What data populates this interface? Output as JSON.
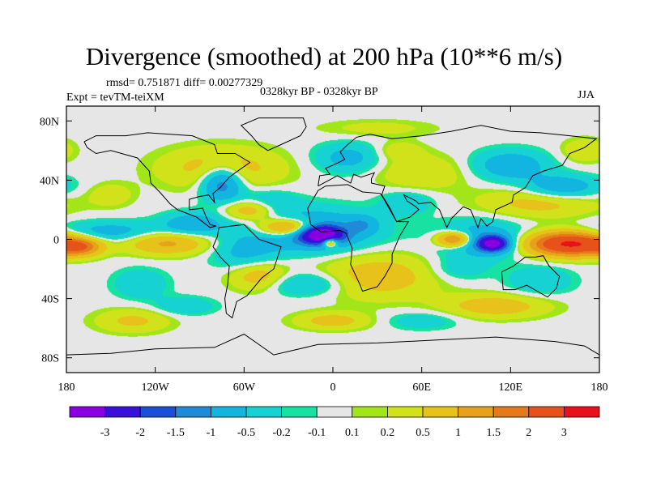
{
  "chart_data": {
    "type": "heatmap",
    "title": "Divergence (smoothed) at 200 hPa (10**6 m/s)",
    "stats": "rmsd= 0.751871 diff= 0.00277329",
    "expt": "Expt = tevTM-teiXM",
    "period": "0328kyr BP - 0328kyr BP",
    "season": "JJA",
    "x_range": [
      -180,
      180
    ],
    "y_range": [
      -90,
      90
    ],
    "x_ticks": [
      {
        "value": -180,
        "label": "180"
      },
      {
        "value": -120,
        "label": "120W"
      },
      {
        "value": -60,
        "label": "60W"
      },
      {
        "value": 0,
        "label": "0"
      },
      {
        "value": 60,
        "label": "60E"
      },
      {
        "value": 120,
        "label": "120E"
      },
      {
        "value": 180,
        "label": "180"
      }
    ],
    "y_ticks": [
      {
        "value": 80,
        "label": "80N"
      },
      {
        "value": 40,
        "label": "40N"
      },
      {
        "value": 0,
        "label": "0"
      },
      {
        "value": -40,
        "label": "40S"
      },
      {
        "value": -80,
        "label": "80S"
      }
    ],
    "colorbar": {
      "colors": [
        "#8a00e0",
        "#3a10d8",
        "#1a50d8",
        "#1e8ad8",
        "#12b4e0",
        "#16d2d2",
        "#18e2a2",
        "#e6e6e6",
        "#a2e61a",
        "#d2e21a",
        "#e6c21a",
        "#e6a21a",
        "#e67a1a",
        "#e6521a",
        "#e8101a"
      ],
      "labels": [
        "-3",
        "-2",
        "-1.5",
        "-1",
        "-0.5",
        "-0.2",
        "-0.1",
        "0.1",
        "0.2",
        "0.5",
        "1",
        "1.5",
        "2",
        "3"
      ]
    },
    "field": {
      "background": 0,
      "features": [
        {
          "lon": -8,
          "lat": 3,
          "rx": 14,
          "ry": 6,
          "value": -3.5
        },
        {
          "lon": 108,
          "lat": -3,
          "rx": 10,
          "ry": 5,
          "value": -3.0
        },
        {
          "lon": -15,
          "lat": 6,
          "rx": 42,
          "ry": 14,
          "value": -1.2
        },
        {
          "lon": 100,
          "lat": 0,
          "rx": 28,
          "ry": 12,
          "value": -1.0
        },
        {
          "lon": -75,
          "lat": 38,
          "rx": 14,
          "ry": 12,
          "value": -1.5
        },
        {
          "lon": -150,
          "lat": 5,
          "rx": 40,
          "ry": 7,
          "value": -0.8
        },
        {
          "lon": -95,
          "lat": 10,
          "rx": 20,
          "ry": 8,
          "value": -0.9
        },
        {
          "lon": -60,
          "lat": -10,
          "rx": 22,
          "ry": 12,
          "value": -0.6
        },
        {
          "lon": -20,
          "lat": -30,
          "rx": 30,
          "ry": 8,
          "value": -0.7
        },
        {
          "lon": 10,
          "lat": 55,
          "rx": 22,
          "ry": 10,
          "value": -0.7
        },
        {
          "lon": 120,
          "lat": 50,
          "rx": 25,
          "ry": 10,
          "value": -0.9
        },
        {
          "lon": 155,
          "lat": 35,
          "rx": 25,
          "ry": 8,
          "value": -1.0
        },
        {
          "lon": -45,
          "lat": 25,
          "rx": 20,
          "ry": 8,
          "value": -0.6
        },
        {
          "lon": 50,
          "lat": 25,
          "rx": 18,
          "ry": 8,
          "value": -0.5
        },
        {
          "lon": 85,
          "lat": -20,
          "rx": 20,
          "ry": 8,
          "value": -0.4
        },
        {
          "lon": 140,
          "lat": -28,
          "rx": 22,
          "ry": 10,
          "value": -0.5
        },
        {
          "lon": -130,
          "lat": -30,
          "rx": 18,
          "ry": 10,
          "value": -0.5
        },
        {
          "lon": -100,
          "lat": -45,
          "rx": 20,
          "ry": 6,
          "value": -0.5
        },
        {
          "lon": 60,
          "lat": -55,
          "rx": 25,
          "ry": 6,
          "value": -0.4
        },
        {
          "lon": 20,
          "lat": 10,
          "rx": 10,
          "ry": 6,
          "value": -0.6
        },
        {
          "lon": 160,
          "lat": -3,
          "rx": 28,
          "ry": 8,
          "value": 3.2
        },
        {
          "lon": 82,
          "lat": 0,
          "rx": 12,
          "ry": 5,
          "value": 2.0
        },
        {
          "lon": -30,
          "lat": 8,
          "rx": 20,
          "ry": 6,
          "value": 2.0
        },
        {
          "lon": -2,
          "lat": -2,
          "rx": 5,
          "ry": 3,
          "value": 2.5
        },
        {
          "lon": -112,
          "lat": -2,
          "rx": 28,
          "ry": 8,
          "value": 1.2
        },
        {
          "lon": -170,
          "lat": -5,
          "rx": 14,
          "ry": 6,
          "value": 1.5
        },
        {
          "lon": -75,
          "lat": 48,
          "rx": 40,
          "ry": 14,
          "value": 0.8
        },
        {
          "lon": -55,
          "lat": 20,
          "rx": 18,
          "ry": 7,
          "value": 1.1
        },
        {
          "lon": 30,
          "lat": -25,
          "rx": 40,
          "ry": 15,
          "value": 0.8
        },
        {
          "lon": -50,
          "lat": -25,
          "rx": 20,
          "ry": 10,
          "value": 0.9
        },
        {
          "lon": -135,
          "lat": -55,
          "rx": 25,
          "ry": 8,
          "value": 0.6
        },
        {
          "lon": 140,
          "lat": 25,
          "rx": 40,
          "ry": 10,
          "value": 0.7
        },
        {
          "lon": 60,
          "lat": 45,
          "rx": 30,
          "ry": 12,
          "value": 0.5
        },
        {
          "lon": 170,
          "lat": 60,
          "rx": 15,
          "ry": 8,
          "value": 0.5
        },
        {
          "lon": 110,
          "lat": -45,
          "rx": 35,
          "ry": 8,
          "value": 0.8
        },
        {
          "lon": 0,
          "lat": -55,
          "rx": 25,
          "ry": 6,
          "value": 0.7
        },
        {
          "lon": -150,
          "lat": 30,
          "rx": 15,
          "ry": 8,
          "value": 0.4
        },
        {
          "lon": 45,
          "lat": 60,
          "rx": 15,
          "ry": 6,
          "value": 0.4
        },
        {
          "lon": 30,
          "lat": 75,
          "rx": 40,
          "ry": 6,
          "value": 0.3
        }
      ]
    }
  }
}
